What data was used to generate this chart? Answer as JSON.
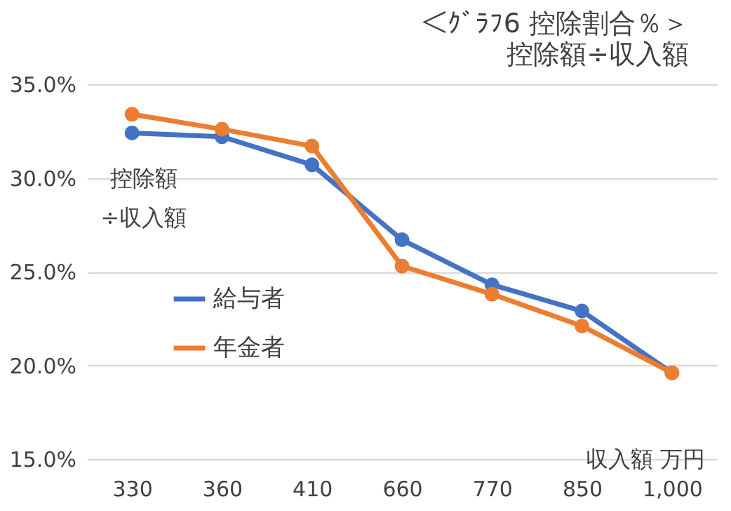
{
  "chart_data": {
    "type": "line",
    "title": "＜ｸﾞﾗﾌ6  控除割合％＞",
    "subtitle": "控除額÷収入額",
    "ylabel": "控除額÷収入額",
    "xlabel": "収入額  万円",
    "categories": [
      "330",
      "360",
      "410",
      "660",
      "770",
      "850",
      "1,000"
    ],
    "series": [
      {
        "name": "給与者",
        "color": "#4472c4",
        "values": [
          32.4,
          32.2,
          30.7,
          26.7,
          24.3,
          22.9,
          19.6
        ]
      },
      {
        "name": "年金者",
        "color": "#ed7d31",
        "values": [
          33.4,
          32.6,
          31.7,
          25.3,
          23.8,
          22.1,
          19.6
        ]
      }
    ],
    "ylim": [
      15,
      35
    ],
    "yticks": [
      {
        "value": 15,
        "label": "15.0%"
      },
      {
        "value": 20,
        "label": "20.0%"
      },
      {
        "value": 25,
        "label": "25.0%"
      },
      {
        "value": 30,
        "label": "30.0%"
      },
      {
        "value": 35,
        "label": "35.0%"
      }
    ],
    "grid": "y",
    "legend": "left",
    "marker": "circle",
    "line_style": "solid"
  }
}
